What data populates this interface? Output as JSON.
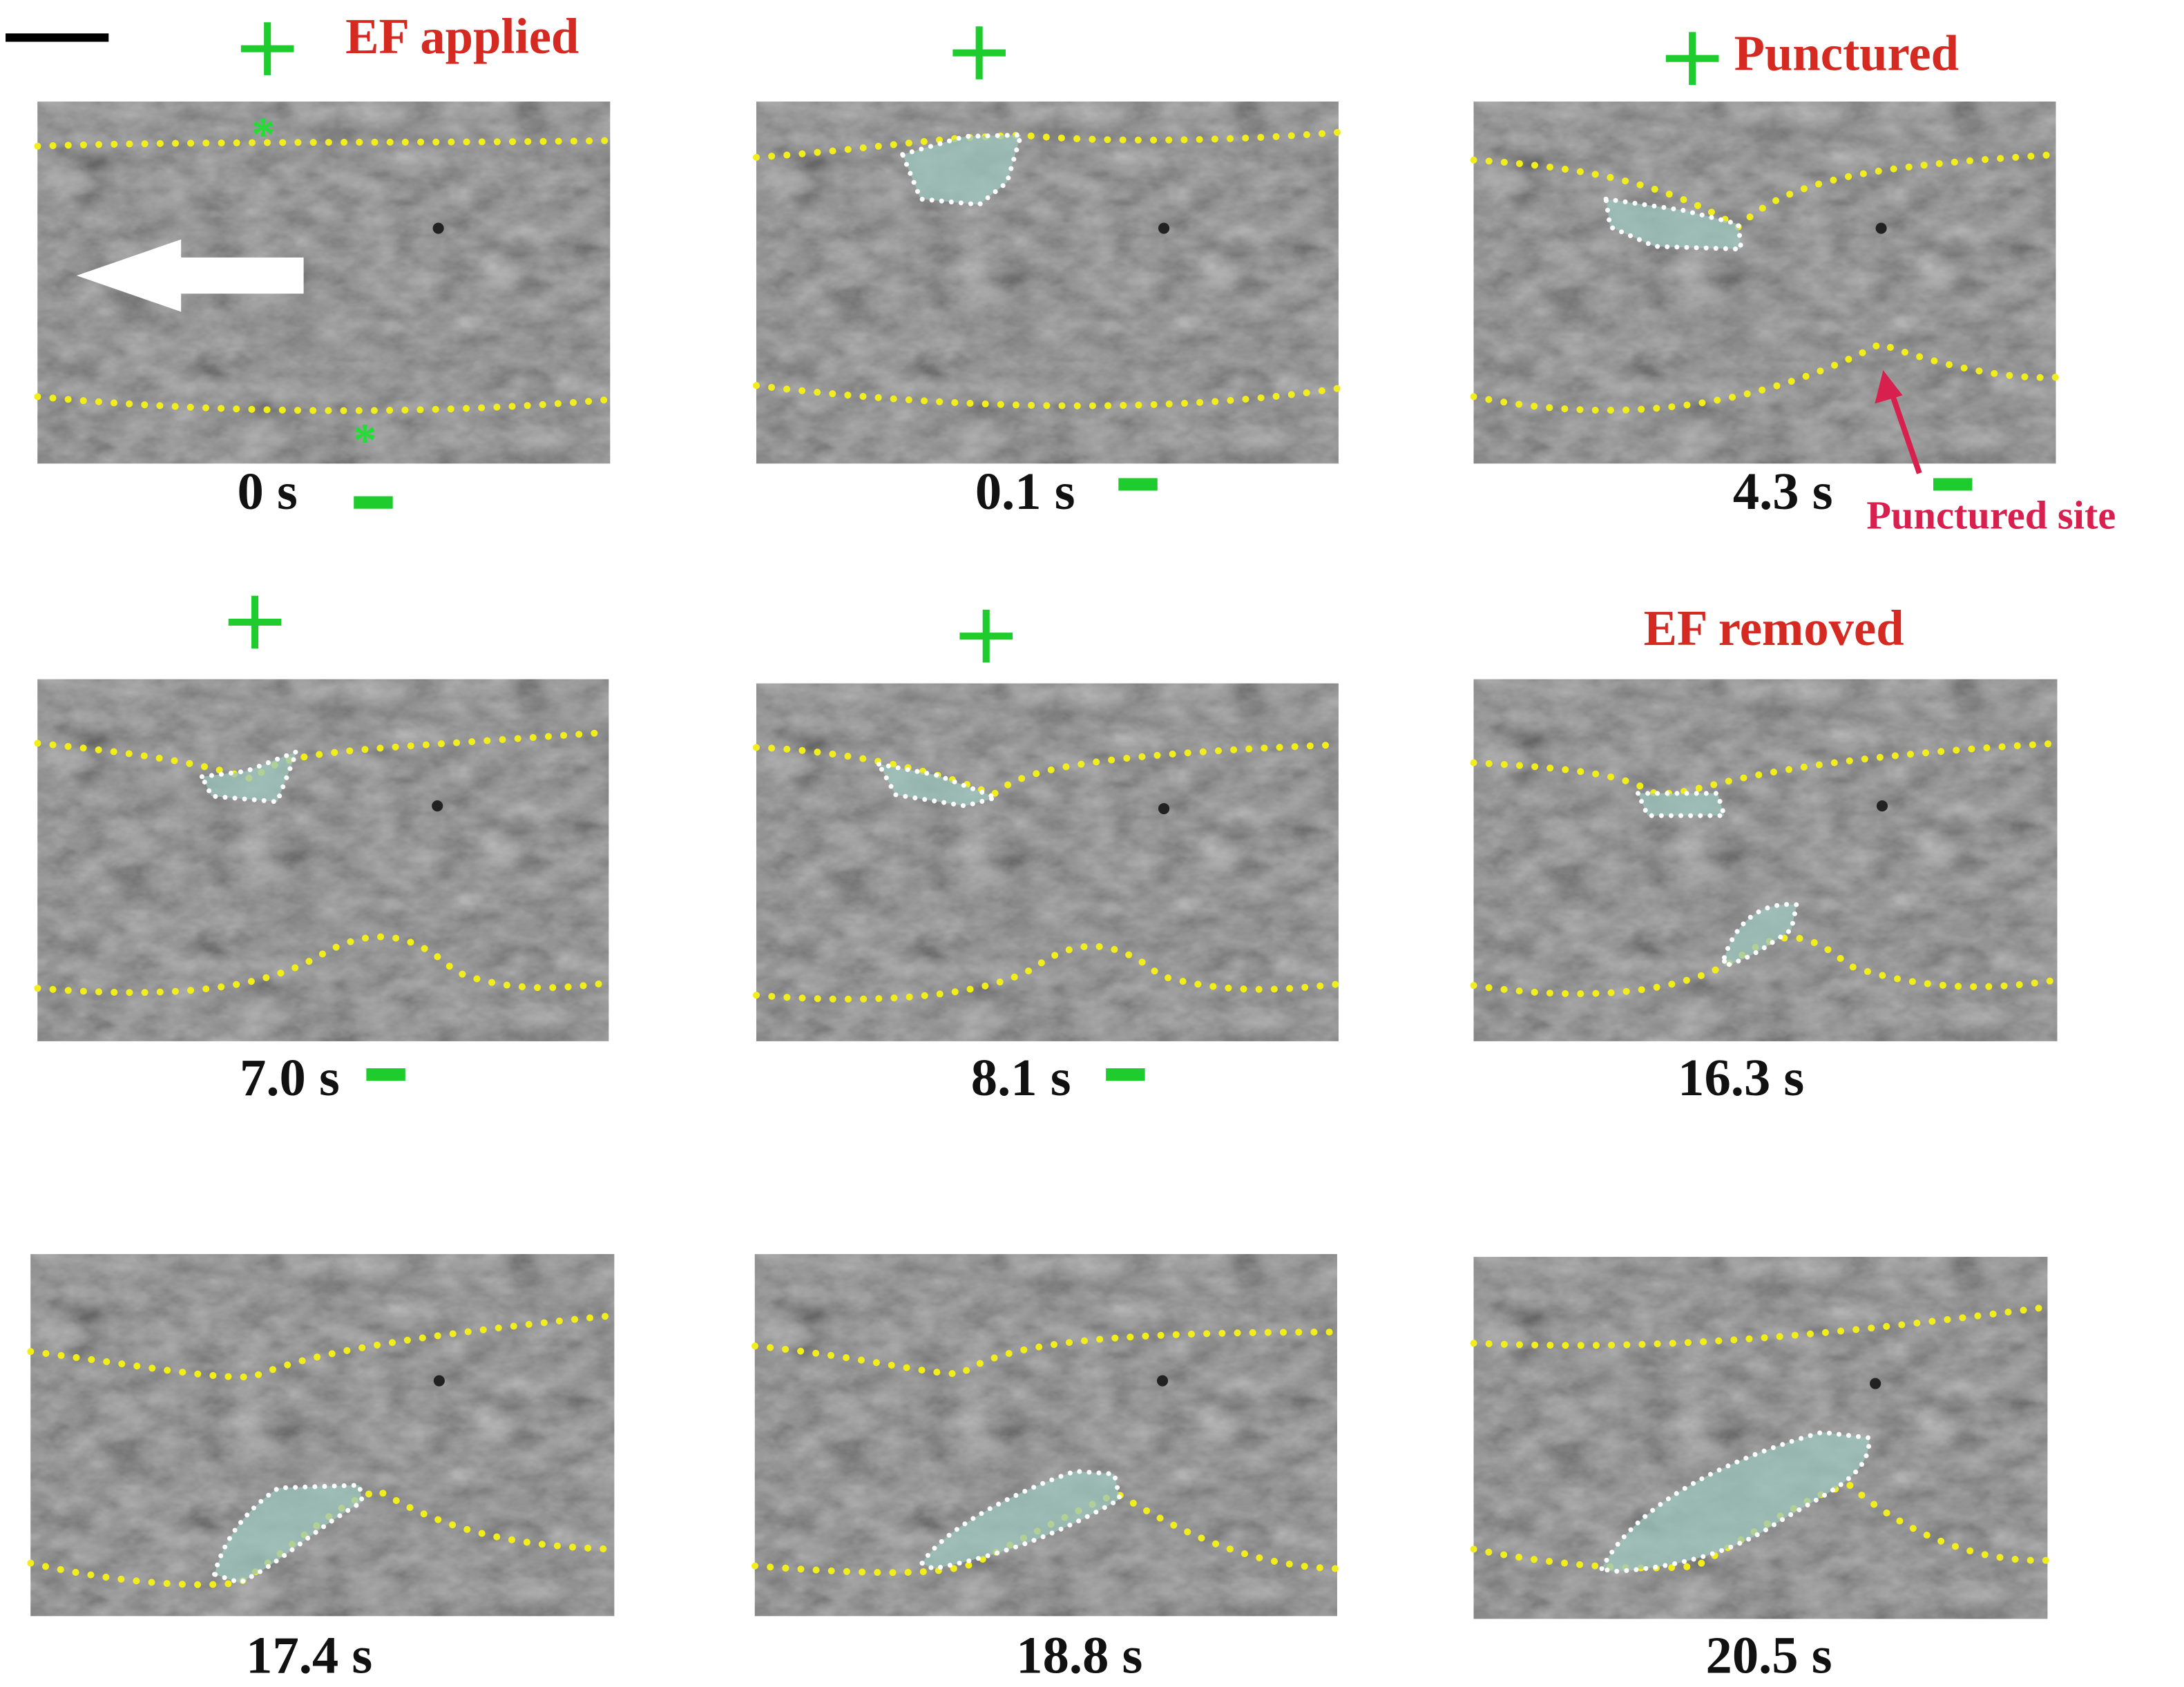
{
  "panels": [
    {
      "time": "0 s",
      "note": "EF applied"
    },
    {
      "time": "0.1 s"
    },
    {
      "time": "4.3 s",
      "note": "Punctured",
      "site": "Punctured site"
    },
    {
      "time": "7.0 s"
    },
    {
      "time": "8.1 s"
    },
    {
      "time": "16.3 s",
      "note": "EF removed"
    },
    {
      "time": "17.4 s"
    },
    {
      "time": "18.8 s"
    },
    {
      "time": "20.5 s"
    }
  ]
}
